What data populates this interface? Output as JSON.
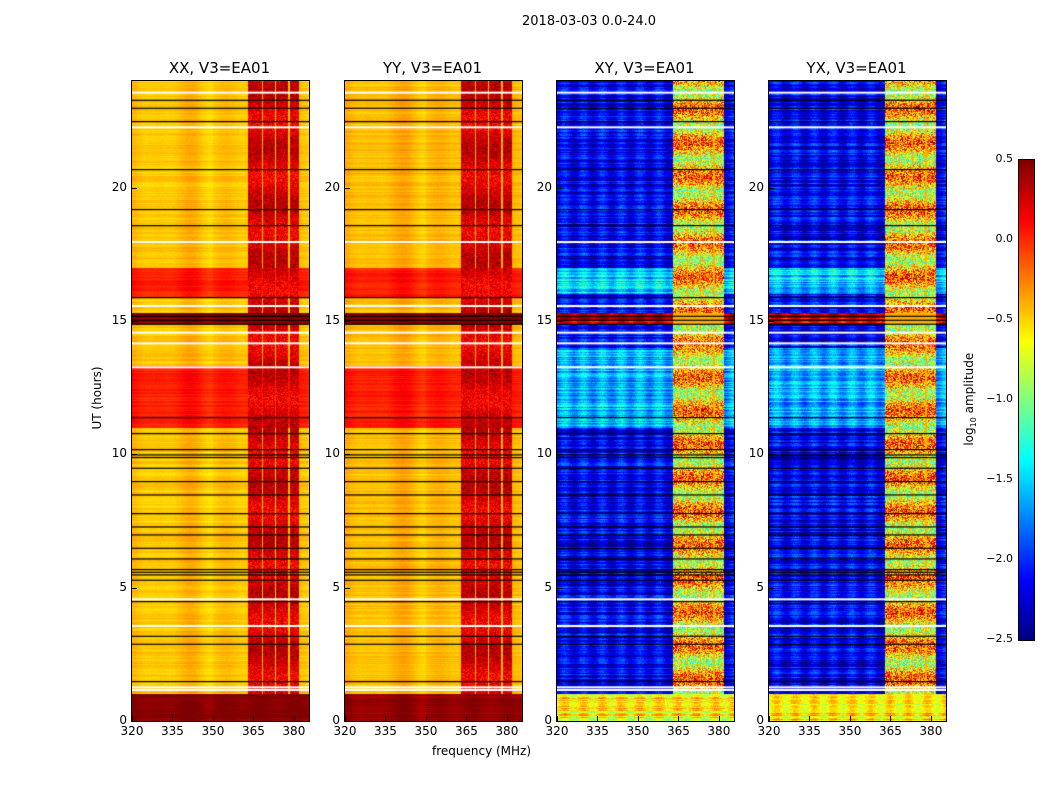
{
  "title": "2018-03-03 0.0-24.0",
  "chart_data": {
    "type": "heatmap",
    "title": "2018-03-03 0.0-24.0",
    "xlabel": "frequency (MHz)",
    "ylabel": "UT (hours)",
    "xlim": [
      320,
      385.6
    ],
    "ylim": [
      0,
      24
    ],
    "xticks": [
      320,
      335,
      350,
      365,
      380
    ],
    "yticks": [
      0,
      5,
      10,
      15,
      20
    ],
    "colormap": "jet",
    "colorbar": {
      "label_main": "log",
      "label_sub": "10",
      "label_rest": " amplitude",
      "range": [
        -2.5,
        0.5
      ],
      "ticks": [
        "0.5",
        "0.0",
        "−0.5",
        "−1.0",
        "−1.5",
        "−2.0",
        "−2.5"
      ],
      "tick_values": [
        0.5,
        0,
        -0.5,
        -1,
        -1.5,
        -2,
        -2.5
      ]
    },
    "rfi_band_mhz": [
      363,
      382
    ],
    "rfi_subbands_mhz": [
      [
        363,
        368
      ],
      [
        368.5,
        373
      ],
      [
        373.5,
        378
      ],
      [
        378.5,
        382
      ]
    ],
    "flagged_white_hours": [
      23.6,
      22.3,
      18.0,
      15.6,
      14.6,
      14.2,
      13.3,
      4.6,
      3.6,
      1.3,
      1.2
    ],
    "flagged_black_hours": [
      23.3,
      23.0,
      22.5,
      20.7,
      19.2,
      18.6,
      15.9,
      15.2,
      15.05,
      14.9,
      11.4,
      10.8,
      10.2,
      10.0,
      9.9,
      9.5,
      9.0,
      8.5,
      7.8,
      7.3,
      7.0,
      6.5,
      6.1,
      5.7,
      5.6,
      5.5,
      5.3,
      4.5,
      3.2,
      2.9,
      1.5
    ],
    "panels": [
      {
        "title": "XX, V3=EA01",
        "base": -0.45,
        "band": 0.2,
        "segments": [
          [
            0,
            1,
            0.5
          ],
          [
            11,
            13.3,
            0.05
          ],
          [
            15.9,
            17,
            0.05
          ],
          [
            14.9,
            15.3,
            0.5
          ]
        ]
      },
      {
        "title": "YY, V3=EA01",
        "base": -0.42,
        "band": 0.2,
        "segments": [
          [
            0,
            1,
            0.45
          ],
          [
            11,
            13.3,
            0.05
          ],
          [
            15.9,
            17,
            0.05
          ],
          [
            14.9,
            15.3,
            0.5
          ]
        ]
      },
      {
        "title": "XY, V3=EA01",
        "base": -2.15,
        "band": -0.6,
        "segments": [
          [
            0,
            1,
            -0.6
          ],
          [
            11,
            14,
            -1.6
          ],
          [
            16,
            17,
            -1.5
          ],
          [
            14.9,
            15.3,
            0.3
          ]
        ]
      },
      {
        "title": "YX, V3=EA01",
        "base": -2.15,
        "band": -0.6,
        "segments": [
          [
            0,
            1,
            -0.6
          ],
          [
            11,
            14,
            -1.6
          ],
          [
            16,
            17,
            -1.5
          ],
          [
            14.9,
            15.3,
            0.3
          ]
        ]
      }
    ]
  }
}
